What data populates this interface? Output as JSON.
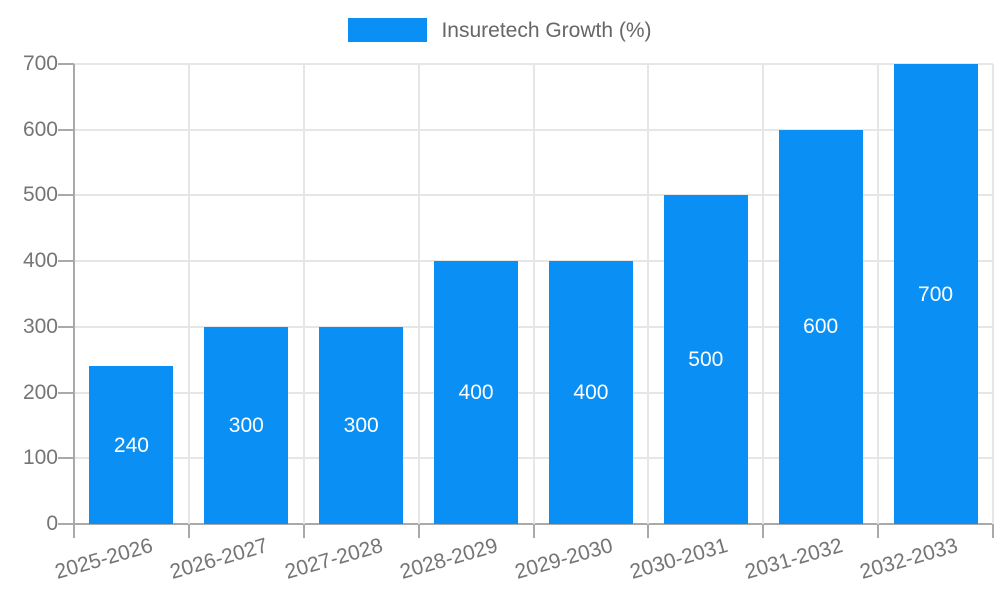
{
  "legend": {
    "label": "Insuretech Growth (%)",
    "swatch_color": "#0a90f5"
  },
  "chart_data": {
    "type": "bar",
    "title": "",
    "categories": [
      "2025-2026",
      "2026-2027",
      "2027-2028",
      "2028-2029",
      "2029-2030",
      "2030-2031",
      "2031-2032",
      "2032-2033"
    ],
    "values": [
      240,
      300,
      300,
      400,
      400,
      500,
      600,
      700
    ],
    "series_name": "Insuretech Growth (%)",
    "xlabel": "",
    "ylabel": "",
    "ylim": [
      0,
      700
    ],
    "yticks": [
      0,
      100,
      200,
      300,
      400,
      500,
      600,
      700
    ],
    "grid": true,
    "legend_position": "top-center",
    "bar_color": "#0a90f5",
    "value_label_color": "#ffffff",
    "axis_color": "#a9a9a9",
    "grid_color": "#e6e6e6",
    "tick_label_color": "#757575"
  }
}
